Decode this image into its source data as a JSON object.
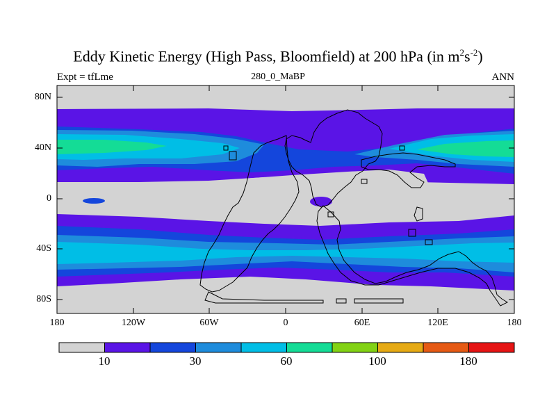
{
  "title": "Eddy Kinetic Energy (High Pass, Bloomfield) at 200 hPa (in m",
  "title_unit_power": "2",
  "title_unit_tail": "s",
  "title_unit_power2": "-2",
  "title_end": ")",
  "subtitle": "280_0_MaBP",
  "left_label": "Expt = tfLme",
  "right_label": "ANN",
  "lat_labels": [
    "80N",
    "40N",
    "0",
    "40S",
    "80S"
  ],
  "lon_labels": [
    "180",
    "120W",
    "60W",
    "0",
    "60E",
    "120E",
    "180"
  ],
  "colorbar": {
    "colors": [
      "#d3d3d3",
      "#5a14e6",
      "#1446dc",
      "#1e8cdc",
      "#00bee6",
      "#14dc96",
      "#82d214",
      "#e6aa14",
      "#e65a14",
      "#e61414"
    ],
    "labels": [
      "10",
      "30",
      "60",
      "100",
      "180"
    ]
  },
  "level_colors": {
    "lt10": "#d3d3d3",
    "l10_20": "#5a14e6",
    "l20_30": "#1446dc",
    "l30_40": "#1e8cdc",
    "l40_50": "#00bee6",
    "l50_80": "#14dc96"
  }
}
